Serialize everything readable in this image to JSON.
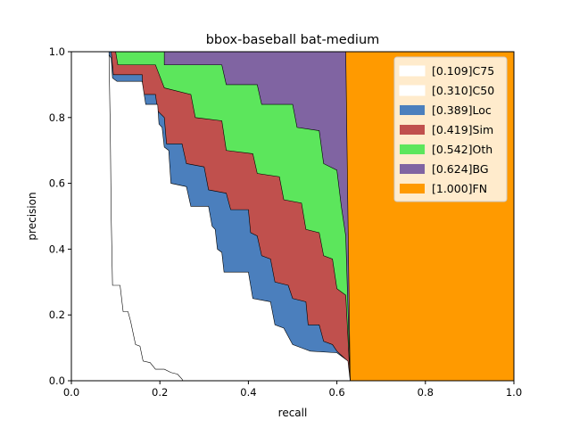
{
  "chart_data": {
    "type": "area",
    "title": "bbox-baseball bat-medium",
    "xlabel": "recall",
    "ylabel": "precision",
    "xlim": [
      0,
      1
    ],
    "ylim": [
      0,
      1
    ],
    "xticks": [
      "0.0",
      "0.2",
      "0.4",
      "0.6",
      "0.8",
      "1.0"
    ],
    "yticks": [
      "0.0",
      "0.2",
      "0.4",
      "0.6",
      "0.8",
      "1.0"
    ],
    "grid": false,
    "legend_position": "top-right",
    "series": [
      {
        "name": "[0.109]C75",
        "color": "#ffffff",
        "points": [
          [
            0,
            1
          ],
          [
            0.085,
            1
          ],
          [
            0.088,
            0.75
          ],
          [
            0.09,
            0.5
          ],
          [
            0.093,
            0.29
          ],
          [
            0.11,
            0.29
          ],
          [
            0.117,
            0.21
          ],
          [
            0.128,
            0.21
          ],
          [
            0.134,
            0.18
          ],
          [
            0.145,
            0.11
          ],
          [
            0.155,
            0.105
          ],
          [
            0.162,
            0.06
          ],
          [
            0.178,
            0.055
          ],
          [
            0.19,
            0.035
          ],
          [
            0.21,
            0.035
          ],
          [
            0.225,
            0.025
          ],
          [
            0.24,
            0.02
          ],
          [
            0.25,
            0.005
          ],
          [
            0.252,
            0
          ]
        ]
      },
      {
        "name": "[0.310]C50",
        "color": "#ffffff",
        "points": [
          [
            0,
            1
          ],
          [
            0.08,
            1
          ],
          [
            0.09,
            0.98
          ],
          [
            0.093,
            0.92
          ],
          [
            0.103,
            0.91
          ],
          [
            0.16,
            0.91
          ],
          [
            0.168,
            0.84
          ],
          [
            0.195,
            0.84
          ],
          [
            0.198,
            0.78
          ],
          [
            0.205,
            0.77
          ],
          [
            0.21,
            0.71
          ],
          [
            0.22,
            0.7
          ],
          [
            0.225,
            0.6
          ],
          [
            0.26,
            0.59
          ],
          [
            0.27,
            0.53
          ],
          [
            0.31,
            0.53
          ],
          [
            0.318,
            0.47
          ],
          [
            0.325,
            0.46
          ],
          [
            0.33,
            0.4
          ],
          [
            0.34,
            0.39
          ],
          [
            0.345,
            0.33
          ],
          [
            0.4,
            0.33
          ],
          [
            0.41,
            0.25
          ],
          [
            0.45,
            0.24
          ],
          [
            0.46,
            0.17
          ],
          [
            0.48,
            0.16
          ],
          [
            0.5,
            0.11
          ],
          [
            0.52,
            0.1
          ],
          [
            0.54,
            0.09
          ],
          [
            0.6,
            0.085
          ],
          [
            0.625,
            0.06
          ],
          [
            0.63,
            0
          ]
        ]
      },
      {
        "name": "[0.389]Loc",
        "color": "#4b7fbd",
        "points": [
          [
            0,
            1
          ],
          [
            0.09,
            1
          ],
          [
            0.095,
            0.93
          ],
          [
            0.16,
            0.93
          ],
          [
            0.162,
            0.87
          ],
          [
            0.19,
            0.87
          ],
          [
            0.195,
            0.82
          ],
          [
            0.21,
            0.8
          ],
          [
            0.215,
            0.72
          ],
          [
            0.25,
            0.72
          ],
          [
            0.26,
            0.66
          ],
          [
            0.3,
            0.65
          ],
          [
            0.31,
            0.58
          ],
          [
            0.35,
            0.57
          ],
          [
            0.36,
            0.52
          ],
          [
            0.4,
            0.52
          ],
          [
            0.405,
            0.45
          ],
          [
            0.42,
            0.44
          ],
          [
            0.43,
            0.38
          ],
          [
            0.45,
            0.37
          ],
          [
            0.46,
            0.3
          ],
          [
            0.49,
            0.29
          ],
          [
            0.5,
            0.25
          ],
          [
            0.53,
            0.24
          ],
          [
            0.535,
            0.17
          ],
          [
            0.56,
            0.17
          ],
          [
            0.57,
            0.12
          ],
          [
            0.59,
            0.11
          ],
          [
            0.6,
            0.09
          ],
          [
            0.62,
            0.065
          ],
          [
            0.63,
            0
          ]
        ]
      },
      {
        "name": "[0.419]Sim",
        "color": "#c0504d",
        "points": [
          [
            0,
            1
          ],
          [
            0.1,
            1
          ],
          [
            0.105,
            0.96
          ],
          [
            0.19,
            0.96
          ],
          [
            0.21,
            0.89
          ],
          [
            0.27,
            0.87
          ],
          [
            0.28,
            0.8
          ],
          [
            0.34,
            0.79
          ],
          [
            0.35,
            0.7
          ],
          [
            0.41,
            0.69
          ],
          [
            0.42,
            0.63
          ],
          [
            0.47,
            0.62
          ],
          [
            0.48,
            0.55
          ],
          [
            0.52,
            0.54
          ],
          [
            0.53,
            0.46
          ],
          [
            0.56,
            0.45
          ],
          [
            0.57,
            0.38
          ],
          [
            0.59,
            0.37
          ],
          [
            0.6,
            0.28
          ],
          [
            0.62,
            0.26
          ],
          [
            0.63,
            0
          ]
        ]
      },
      {
        "name": "[0.542]Oth",
        "color": "#5ce65c",
        "points": [
          [
            0,
            1
          ],
          [
            0.21,
            1
          ],
          [
            0.21,
            0.96
          ],
          [
            0.34,
            0.96
          ],
          [
            0.35,
            0.9
          ],
          [
            0.42,
            0.9
          ],
          [
            0.43,
            0.84
          ],
          [
            0.5,
            0.84
          ],
          [
            0.51,
            0.77
          ],
          [
            0.56,
            0.76
          ],
          [
            0.57,
            0.66
          ],
          [
            0.6,
            0.64
          ],
          [
            0.61,
            0.53
          ],
          [
            0.62,
            0.44
          ],
          [
            0.63,
            0
          ]
        ]
      },
      {
        "name": "[0.624]BG",
        "color": "#8064a2",
        "points": [
          [
            0,
            1
          ],
          [
            0.62,
            1
          ],
          [
            0.625,
            0.5
          ],
          [
            0.63,
            0
          ]
        ]
      },
      {
        "name": "[1.000]FN",
        "color": "#ff9a00",
        "points": [
          [
            0,
            1
          ],
          [
            1,
            1
          ],
          [
            1,
            0
          ],
          [
            0,
            0
          ]
        ]
      }
    ]
  }
}
